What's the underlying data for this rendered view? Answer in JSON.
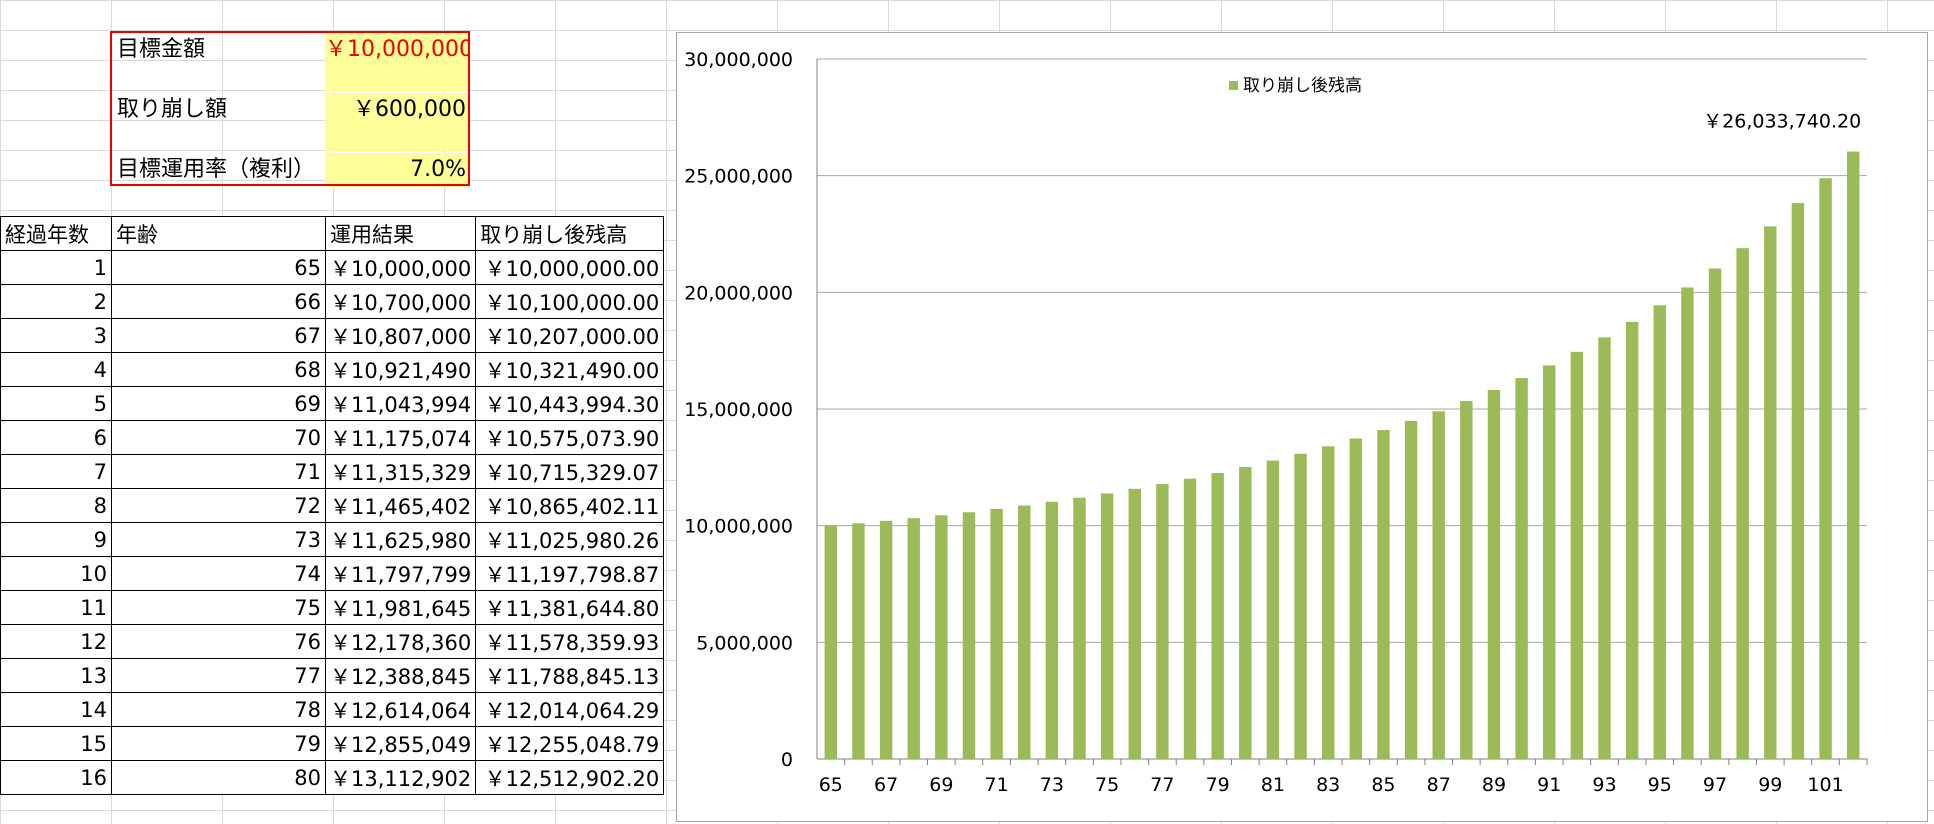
{
  "params": {
    "target_label": "目標金額",
    "target_value": "￥10,000,000",
    "withdraw_label": "取り崩し額",
    "withdraw_value": "￥600,000",
    "rate_label": "目標運用率（複利）",
    "rate_value": "7.0%"
  },
  "table": {
    "headers": [
      "経過年数",
      "年齢",
      "運用結果",
      "取り崩し後残高"
    ],
    "rows": [
      [
        "1",
        "65",
        "￥10,000,000",
        "￥10,000,000.00"
      ],
      [
        "2",
        "66",
        "￥10,700,000",
        "￥10,100,000.00"
      ],
      [
        "3",
        "67",
        "￥10,807,000",
        "￥10,207,000.00"
      ],
      [
        "4",
        "68",
        "￥10,921,490",
        "￥10,321,490.00"
      ],
      [
        "5",
        "69",
        "￥11,043,994",
        "￥10,443,994.30"
      ],
      [
        "6",
        "70",
        "￥11,175,074",
        "￥10,575,073.90"
      ],
      [
        "7",
        "71",
        "￥11,315,329",
        "￥10,715,329.07"
      ],
      [
        "8",
        "72",
        "￥11,465,402",
        "￥10,865,402.11"
      ],
      [
        "9",
        "73",
        "￥11,625,980",
        "￥11,025,980.26"
      ],
      [
        "10",
        "74",
        "￥11,797,799",
        "￥11,197,798.87"
      ],
      [
        "11",
        "75",
        "￥11,981,645",
        "￥11,381,644.80"
      ],
      [
        "12",
        "76",
        "￥12,178,360",
        "￥11,578,359.93"
      ],
      [
        "13",
        "77",
        "￥12,388,845",
        "￥11,788,845.13"
      ],
      [
        "14",
        "78",
        "￥12,614,064",
        "￥12,014,064.29"
      ],
      [
        "15",
        "79",
        "￥12,855,049",
        "￥12,255,048.79"
      ],
      [
        "16",
        "80",
        "￥13,112,902",
        "￥12,512,902.20"
      ]
    ]
  },
  "colors": {
    "bar": "#9bbb59",
    "highlight_border": "#e60000",
    "input_fill": "#ffff99"
  },
  "chart_data": {
    "type": "bar",
    "legend": "取り崩し後残高",
    "legend_position": "top-center",
    "grid": true,
    "ylim": [
      0,
      30000000
    ],
    "y_ticks": [
      "0",
      "5,000,000",
      "10,000,000",
      "15,000,000",
      "20,000,000",
      "25,000,000",
      "30,000,000"
    ],
    "x_tick_labels": [
      "65",
      "67",
      "69",
      "71",
      "73",
      "75",
      "77",
      "79",
      "81",
      "83",
      "85",
      "87",
      "89",
      "91",
      "93",
      "95",
      "97",
      "99",
      "101"
    ],
    "categories": [
      65,
      66,
      67,
      68,
      69,
      70,
      71,
      72,
      73,
      74,
      75,
      76,
      77,
      78,
      79,
      80,
      81,
      82,
      83,
      84,
      85,
      86,
      87,
      88,
      89,
      90,
      91,
      92,
      93,
      94,
      95,
      96,
      97,
      98,
      99,
      100,
      101,
      102
    ],
    "values": [
      10000000,
      10100000,
      10207000,
      10321490,
      10443994.3,
      10575073.9,
      10715329.07,
      10865402.11,
      11025980.26,
      11197798.87,
      11381644.8,
      11578359.93,
      11788845.13,
      12014064.29,
      12255048.79,
      12512902.2,
      12788805,
      13084021,
      13399903,
      13737896,
      14099549,
      14486518,
      14900574,
      15343614,
      15817667,
      16324904,
      16867647,
      17448382,
      18069769,
      18734653,
      19446079,
      20207304,
      21021815,
      21893342,
      22825876,
      23823687,
      24891345,
      26033740.2
    ],
    "data_label": "￥26,033,740.20"
  }
}
